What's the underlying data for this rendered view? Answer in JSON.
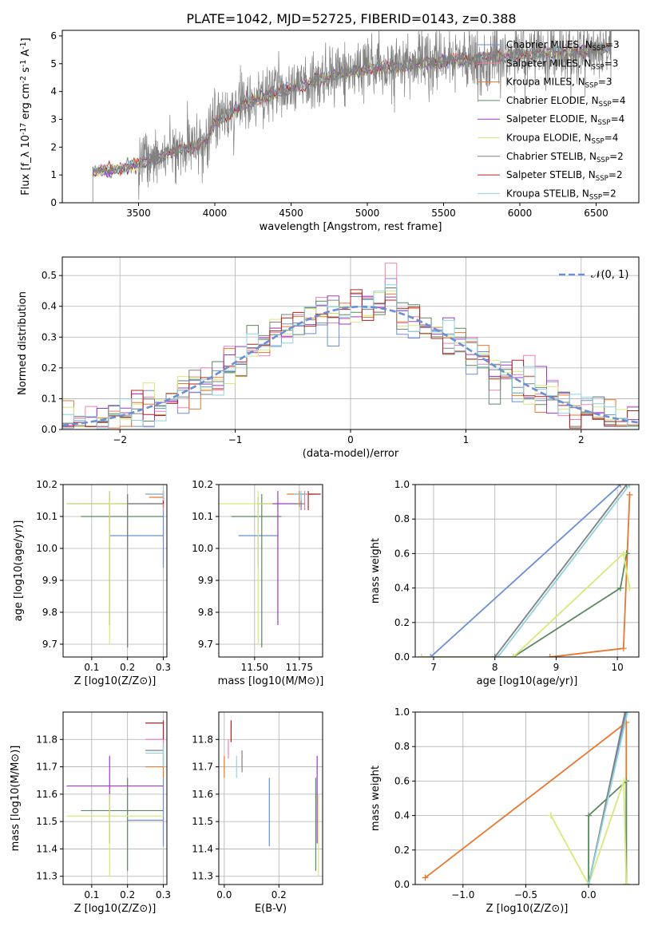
{
  "figure_title": "PLATE=1042, MJD=52725, FIBERID=0143, z=0.388",
  "legend": {
    "chabrier_miles": "Chabrier MILES, N_{SSP}=3",
    "salpeter_miles": "Salpeter MILES, N_{SSP}=3",
    "kroupa_miles": "Kroupa MILES, N_{SSP}=3",
    "chabrier_elodie": "Chabrier ELODIE, N_{SSP}=4",
    "salpeter_elodie": "Salpeter ELODIE, N_{SSP}=4",
    "kroupa_elodie": "Kroupa ELODIE, N_{SSP}=4",
    "chabrier_stelib": "Chabrier STELIB, N_{SSP}=2",
    "salpeter_stelib": "Salpeter STELIB, N_{SSP}=2",
    "kroupa_stelib": "Kroupa STELIB, N_{SSP}=2",
    "normal": "𝒩(0, 1)"
  },
  "colors": {
    "chabrier_miles": "#6a8fd6",
    "salpeter_miles": "#f07fb8",
    "kroupa_miles": "#e8772e",
    "chabrier_elodie": "#5a8a5f",
    "salpeter_elodie": "#9a3bc0",
    "kroupa_elodie": "#d6e97a",
    "chabrier_stelib": "#808080",
    "salpeter_stelib": "#b22222",
    "kroupa_stelib": "#8ed3df"
  },
  "chart_data": [
    {
      "id": "spectrum",
      "type": "line",
      "xlabel": "wavelength [Angstrom, rest frame]",
      "ylabel": "Flux [f_λ 10^{-17} erg cm^{-2} s^{-1} A^{-1}]",
      "xlim": [
        3000,
        6780
      ],
      "ylim": [
        0,
        6.2
      ],
      "xticks": [
        3500,
        4000,
        4500,
        5000,
        5500,
        6000,
        6500
      ],
      "yticks": [
        0,
        1,
        2,
        3,
        4,
        5,
        6
      ],
      "continuum": {
        "x": [
          3200,
          3500,
          3700,
          3950,
          4000,
          4200,
          4500,
          4800,
          5000,
          5500,
          6000,
          6500,
          6600
        ],
        "y": [
          1.1,
          1.35,
          1.8,
          2.2,
          2.9,
          3.6,
          4.1,
          4.6,
          4.8,
          5.1,
          5.3,
          5.5,
          5.6
        ]
      },
      "noise_sigma": 0.55
    },
    {
      "id": "residuals",
      "type": "histogram",
      "xlabel": "(data-model)/error",
      "ylabel": "Normed distribution",
      "xlim": [
        -2.5,
        2.5
      ],
      "ylim": [
        0,
        0.56
      ],
      "xticks": [
        -2,
        -1,
        0,
        1,
        2
      ],
      "yticks": [
        0.0,
        0.1,
        0.2,
        0.3,
        0.4,
        0.5
      ],
      "bin_width": 0.1,
      "series_peak": [
        0.49,
        0.54,
        0.44,
        0.46,
        0.43,
        0.45,
        0.46,
        0.42,
        0.47
      ],
      "normal_mean": 0.1,
      "normal_sigma": 1.0
    },
    {
      "id": "age_vs_z",
      "type": "scatter",
      "xlabel": "Z [log10(Z/Z⊙)]",
      "ylabel": "age [log10(age/yr)]",
      "xlim": [
        0.02,
        0.31
      ],
      "ylim": [
        9.66,
        10.2
      ],
      "xticks": [
        0.1,
        0.2,
        0.3
      ],
      "yticks": [
        9.7,
        9.8,
        9.9,
        10.0,
        10.1,
        10.2
      ],
      "points": [
        {
          "s": "chabrier_miles",
          "x": 0.3,
          "y": 10.04,
          "ex": [
            0.15,
            0.3
          ],
          "ey": [
            9.94,
            10.16
          ]
        },
        {
          "s": "salpeter_miles",
          "x": 0.3,
          "y": 10.17,
          "ex": [
            0.25,
            0.3
          ],
          "ey": [
            10.12,
            10.18
          ]
        },
        {
          "s": "kroupa_miles",
          "x": 0.3,
          "y": 10.16,
          "ex": [
            0.26,
            0.3
          ],
          "ey": [
            10.13,
            10.18
          ]
        },
        {
          "s": "chabrier_elodie",
          "x": 0.2,
          "y": 10.1,
          "ex": [
            0.07,
            0.3
          ],
          "ey": [
            9.69,
            10.17
          ]
        },
        {
          "s": "salpeter_elodie",
          "x": 0.15,
          "y": 10.14,
          "ex": [
            0.03,
            0.3
          ],
          "ey": [
            9.76,
            10.18
          ]
        },
        {
          "s": "kroupa_elodie",
          "x": 0.15,
          "y": 10.14,
          "ex": [
            0.03,
            0.3
          ],
          "ey": [
            9.7,
            10.18
          ]
        },
        {
          "s": "chabrier_stelib",
          "x": 0.2,
          "y": 10.14,
          "ex": [
            0.2,
            0.3
          ],
          "ey": [
            9.69,
            10.17
          ]
        },
        {
          "s": "salpeter_stelib",
          "x": 0.3,
          "y": 10.17,
          "ex": [
            0.25,
            0.3
          ],
          "ey": [
            10.14,
            10.18
          ]
        },
        {
          "s": "kroupa_stelib",
          "x": 0.3,
          "y": 10.17,
          "ex": [
            0.25,
            0.3
          ],
          "ey": [
            10.15,
            10.18
          ]
        }
      ]
    },
    {
      "id": "age_vs_mass",
      "type": "scatter",
      "xlabel": "mass [log10(M/M⊙)]",
      "ylabel": "",
      "xlim": [
        11.3,
        11.88
      ],
      "ylim": [
        9.66,
        10.2
      ],
      "xticks": [
        11.5,
        11.75
      ],
      "xticklabels": [
        "11.50",
        "11.75"
      ],
      "yticks": [
        9.7,
        9.8,
        9.9,
        10.0,
        10.1,
        10.2
      ],
      "points": [
        {
          "s": "chabrier_miles",
          "x": 11.52,
          "y": 10.04,
          "ex": [
            11.41,
            11.63
          ],
          "ey": [
            9.94,
            10.16
          ]
        },
        {
          "s": "salpeter_miles",
          "x": 11.78,
          "y": 10.17,
          "ex": [
            11.72,
            11.85
          ],
          "ey": [
            10.12,
            10.18
          ]
        },
        {
          "s": "kroupa_miles",
          "x": 11.75,
          "y": 10.17,
          "ex": [
            11.68,
            11.82
          ],
          "ey": [
            10.13,
            10.18
          ]
        },
        {
          "s": "chabrier_elodie",
          "x": 11.54,
          "y": 10.1,
          "ex": [
            11.37,
            11.65
          ],
          "ey": [
            9.69,
            10.17
          ]
        },
        {
          "s": "salpeter_elodie",
          "x": 11.63,
          "y": 10.14,
          "ex": [
            11.52,
            11.74
          ],
          "ey": [
            9.76,
            10.18
          ]
        },
        {
          "s": "kroupa_elodie",
          "x": 11.52,
          "y": 10.14,
          "ex": [
            11.3,
            11.6
          ],
          "ey": [
            9.7,
            10.18
          ]
        },
        {
          "s": "chabrier_stelib",
          "x": 11.76,
          "y": 10.14,
          "ex": [
            11.7,
            11.78
          ],
          "ey": [
            10.12,
            10.17
          ]
        },
        {
          "s": "salpeter_stelib",
          "x": 11.8,
          "y": 10.17,
          "ex": [
            11.75,
            11.87
          ],
          "ey": [
            10.12,
            10.18
          ]
        },
        {
          "s": "kroupa_stelib",
          "x": 11.76,
          "y": 10.17,
          "ex": [
            11.72,
            11.8
          ],
          "ey": [
            10.15,
            10.18
          ]
        }
      ]
    },
    {
      "id": "mass_weight_vs_age",
      "type": "line",
      "xlabel": "age [log10(age/yr)]",
      "ylabel": "mass weight",
      "xlim": [
        6.7,
        10.35
      ],
      "ylim": [
        0,
        1
      ],
      "xticks": [
        7,
        8,
        9,
        10
      ],
      "yticks": [
        0.0,
        0.2,
        0.4,
        0.6,
        0.8,
        1.0
      ],
      "series": [
        {
          "s": "chabrier_miles",
          "x": [
            6.95,
            10.05
          ],
          "y": [
            0,
            1
          ]
        },
        {
          "s": "kroupa_miles",
          "x": [
            8.9,
            10.1,
            10.2,
            10.2
          ],
          "y": [
            0,
            0.05,
            0.94,
            0.94
          ]
        },
        {
          "s": "chabrier_elodie",
          "x": [
            6.8,
            8.3,
            10.05,
            10.15,
            10.15
          ],
          "y": [
            0,
            0,
            0.4,
            0.6,
            0.6
          ]
        },
        {
          "s": "kroupa_elodie",
          "x": [
            6.8,
            8.3,
            10.1,
            10.2
          ],
          "y": [
            0,
            0,
            0.6,
            0.4
          ]
        },
        {
          "s": "chabrier_stelib",
          "x": [
            8.0,
            10.15
          ],
          "y": [
            0,
            1
          ]
        },
        {
          "s": "kroupa_stelib",
          "x": [
            8.05,
            10.2
          ],
          "y": [
            0,
            1
          ]
        }
      ]
    },
    {
      "id": "mass_vs_z",
      "type": "scatter",
      "xlabel": "Z [log10(Z/Z⊙)]",
      "ylabel": "mass [log10(M/M⊙)]",
      "xlim": [
        0.02,
        0.31
      ],
      "ylim": [
        11.27,
        11.9
      ],
      "xticks": [
        0.1,
        0.2,
        0.3
      ],
      "yticks": [
        11.3,
        11.4,
        11.5,
        11.6,
        11.7,
        11.8
      ],
      "points": [
        {
          "s": "chabrier_miles",
          "x": 0.3,
          "y": 11.505,
          "ex": [
            0.2,
            0.3
          ],
          "ey": [
            11.41,
            11.66
          ]
        },
        {
          "s": "salpeter_miles",
          "x": 0.3,
          "y": 11.8,
          "ex": [
            0.25,
            0.3
          ],
          "ey": [
            11.77,
            11.84
          ]
        },
        {
          "s": "kroupa_miles",
          "x": 0.3,
          "y": 11.7,
          "ex": [
            0.25,
            0.3
          ],
          "ey": [
            11.66,
            11.74
          ]
        },
        {
          "s": "chabrier_elodie",
          "x": 0.2,
          "y": 11.54,
          "ex": [
            0.07,
            0.3
          ],
          "ey": [
            11.32,
            11.66
          ]
        },
        {
          "s": "salpeter_elodie",
          "x": 0.15,
          "y": 11.63,
          "ex": [
            0.03,
            0.3
          ],
          "ey": [
            11.42,
            11.74
          ]
        },
        {
          "s": "kroupa_elodie",
          "x": 0.15,
          "y": 11.52,
          "ex": [
            0.03,
            0.3
          ],
          "ey": [
            11.3,
            11.6
          ]
        },
        {
          "s": "chabrier_stelib",
          "x": 0.3,
          "y": 11.76,
          "ex": [
            0.25,
            0.3
          ],
          "ey": [
            11.7,
            11.78
          ]
        },
        {
          "s": "salpeter_stelib",
          "x": 0.3,
          "y": 11.86,
          "ex": [
            0.25,
            0.3
          ],
          "ey": [
            11.8,
            11.87
          ]
        },
        {
          "s": "kroupa_stelib",
          "x": 0.3,
          "y": 11.75,
          "ex": [
            0.25,
            0.3
          ],
          "ey": [
            11.7,
            11.78
          ]
        }
      ]
    },
    {
      "id": "mass_vs_ebv",
      "type": "scatter",
      "xlabel": "E(B-V)",
      "ylabel": "",
      "xlim": [
        -0.02,
        0.36
      ],
      "ylim": [
        11.27,
        11.9
      ],
      "xticks": [
        0.0,
        0.2
      ],
      "xticklabels": [
        "0.0",
        "0.2"
      ],
      "yticks": [
        11.3,
        11.4,
        11.5,
        11.6,
        11.7,
        11.8
      ],
      "points": [
        {
          "s": "chabrier_miles",
          "x": 0.165,
          "y": 11.54,
          "ey": [
            11.41,
            11.66
          ]
        },
        {
          "s": "salpeter_miles",
          "x": 0.015,
          "y": 11.76,
          "ey": [
            11.73,
            11.8
          ]
        },
        {
          "s": "kroupa_miles",
          "x": 0.0,
          "y": 11.7,
          "ey": [
            11.66,
            11.74
          ]
        },
        {
          "s": "chabrier_elodie",
          "x": 0.335,
          "y": 11.5,
          "ey": [
            11.32,
            11.66
          ]
        },
        {
          "s": "salpeter_elodie",
          "x": 0.34,
          "y": 11.6,
          "ey": [
            11.42,
            11.74
          ]
        },
        {
          "s": "kroupa_elodie",
          "x": 0.345,
          "y": 11.45,
          "ey": [
            11.3,
            11.6
          ]
        },
        {
          "s": "chabrier_stelib",
          "x": 0.065,
          "y": 11.72,
          "ey": [
            11.68,
            11.76
          ]
        },
        {
          "s": "salpeter_stelib",
          "x": 0.025,
          "y": 11.83,
          "ey": [
            11.79,
            11.87
          ]
        },
        {
          "s": "kroupa_stelib",
          "x": 0.045,
          "y": 11.7,
          "ey": [
            11.66,
            11.74
          ]
        }
      ]
    },
    {
      "id": "mass_weight_vs_z",
      "type": "line",
      "xlabel": "Z [log10(Z/Z⊙)]",
      "ylabel": "mass weight",
      "xlim": [
        -1.38,
        0.4
      ],
      "ylim": [
        0,
        1
      ],
      "xticks": [
        -1.0,
        -0.5,
        0.0
      ],
      "xticklabels": [
        "−1.0",
        "−0.5",
        "0.0"
      ],
      "yticks": [
        0.0,
        0.2,
        0.4,
        0.6,
        0.8,
        1.0
      ],
      "series": [
        {
          "s": "chabrier_miles",
          "x": [
            0.0,
            0.3
          ],
          "y": [
            0,
            1
          ]
        },
        {
          "s": "kroupa_miles",
          "x": [
            -1.3,
            0.3,
            0.3
          ],
          "y": [
            0.04,
            0.94,
            0
          ]
        },
        {
          "s": "chabrier_elodie",
          "x": [
            0.0,
            0.0,
            0.3,
            0.3
          ],
          "y": [
            0,
            0.4,
            0.6,
            0
          ]
        },
        {
          "s": "kroupa_elodie",
          "x": [
            -0.3,
            0.0,
            0.28,
            0.3
          ],
          "y": [
            0.4,
            0,
            0.6,
            0
          ]
        },
        {
          "s": "chabrier_stelib",
          "x": [
            0.0,
            0.29
          ],
          "y": [
            0,
            1
          ]
        },
        {
          "s": "kroupa_stelib",
          "x": [
            0.0,
            0.31
          ],
          "y": [
            0,
            1
          ]
        }
      ]
    }
  ]
}
